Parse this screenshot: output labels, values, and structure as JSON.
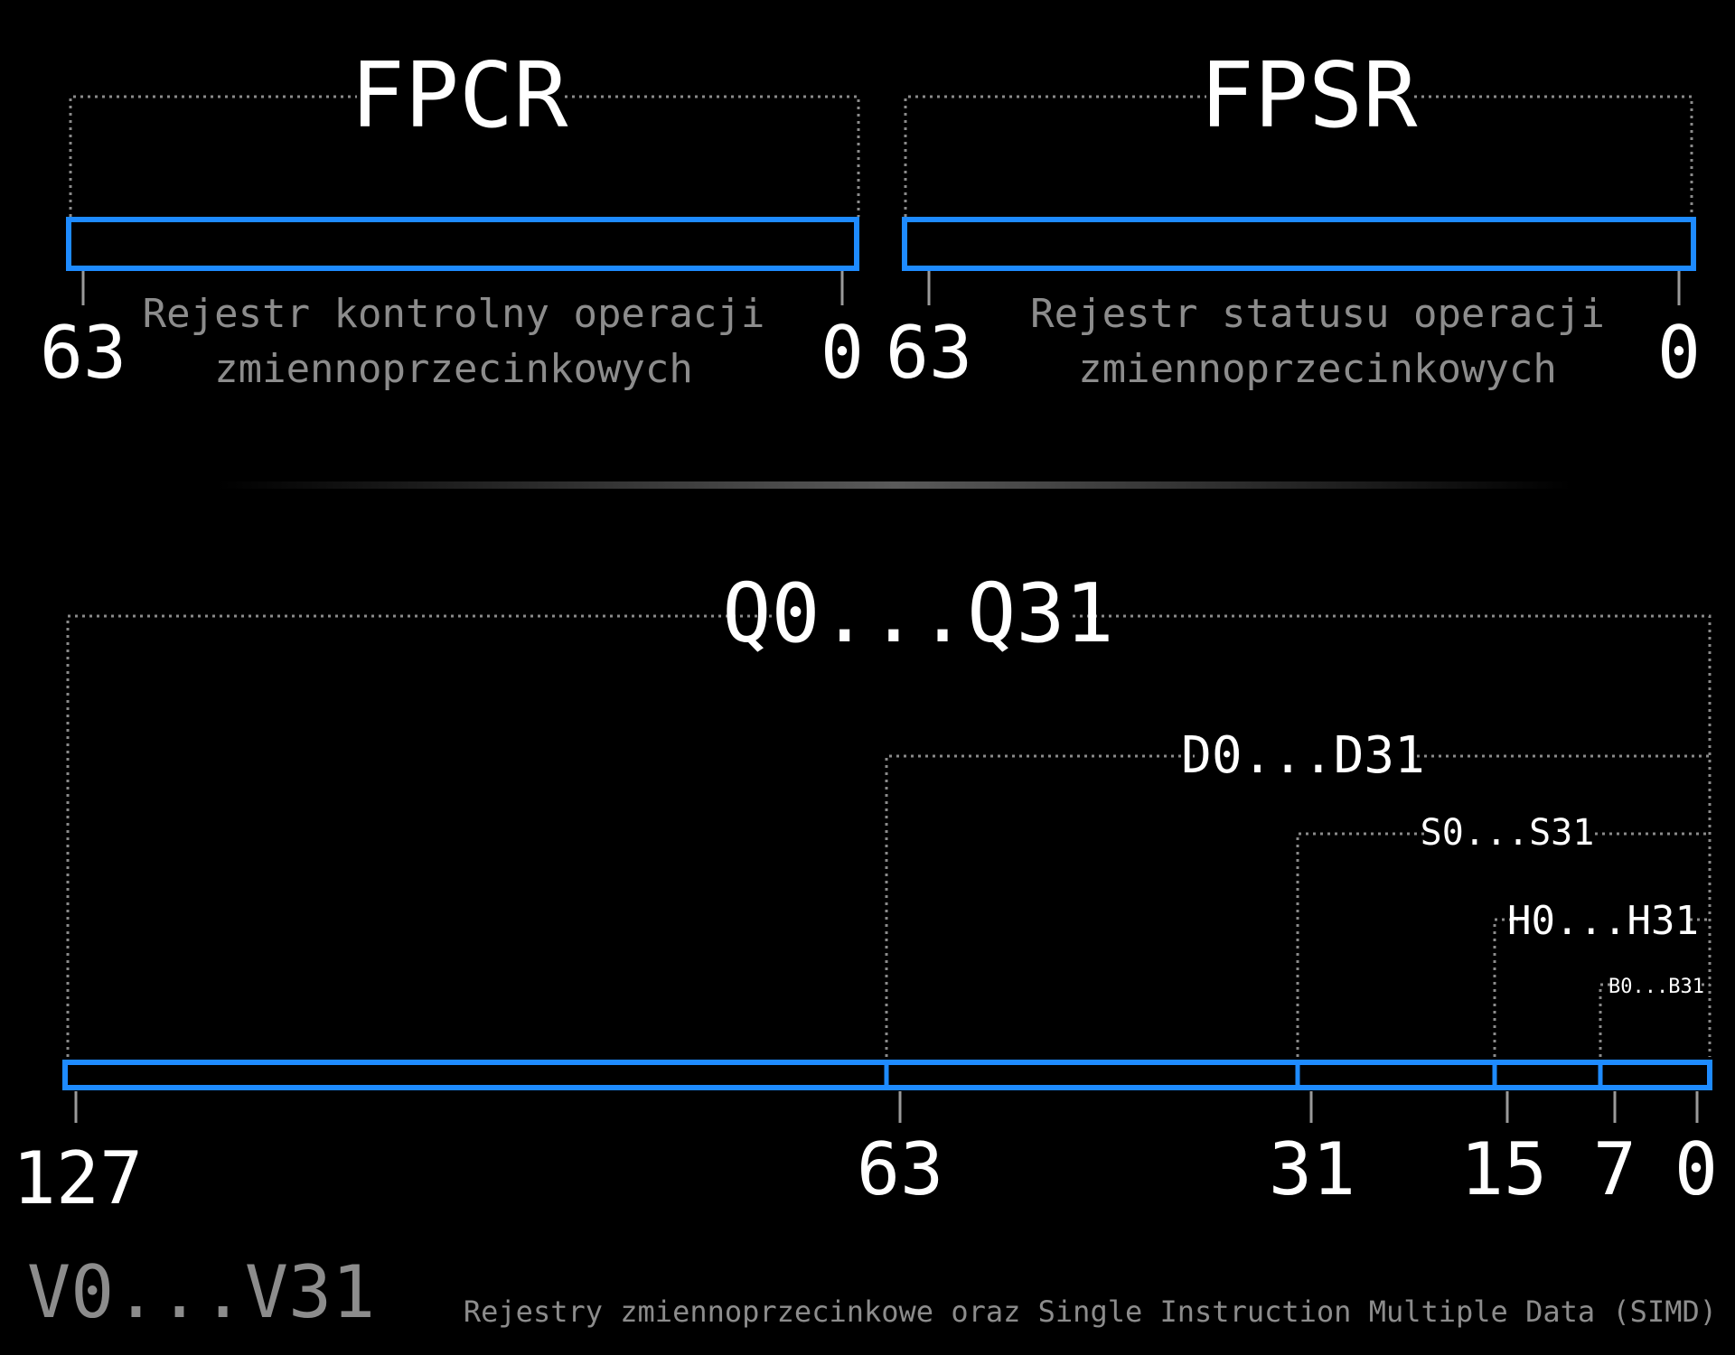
{
  "fpcr": {
    "title": "FPCR",
    "description_line1": "Rejestr kontrolny operacji",
    "description_line2": "zmiennoprzecinkowych",
    "msb": "63",
    "lsb": "0"
  },
  "fpsr": {
    "title": "FPSR",
    "description_line1": "Rejestr statusu operacji",
    "description_line2": "zmiennoprzecinkowych",
    "msb": "63",
    "lsb": "0"
  },
  "simd": {
    "views": {
      "q": "Q0...Q31",
      "d": "D0...D31",
      "s": "S0...S31",
      "h": "H0...H31",
      "b": "B0...B31"
    },
    "bit_labels": {
      "b127": "127",
      "b63": "63",
      "b31": "31",
      "b15": "15",
      "b7": "7",
      "b0": "0"
    },
    "vector_label": "V0...V31"
  },
  "caption": "Rejestry zmiennoprzecinkowe oraz Single Instruction Multiple Data (SIMD)",
  "colors": {
    "register_outline": "#1e8bff",
    "bracket": "#8a8a8a",
    "muted_text": "#8c8c8c",
    "background": "#000000"
  }
}
